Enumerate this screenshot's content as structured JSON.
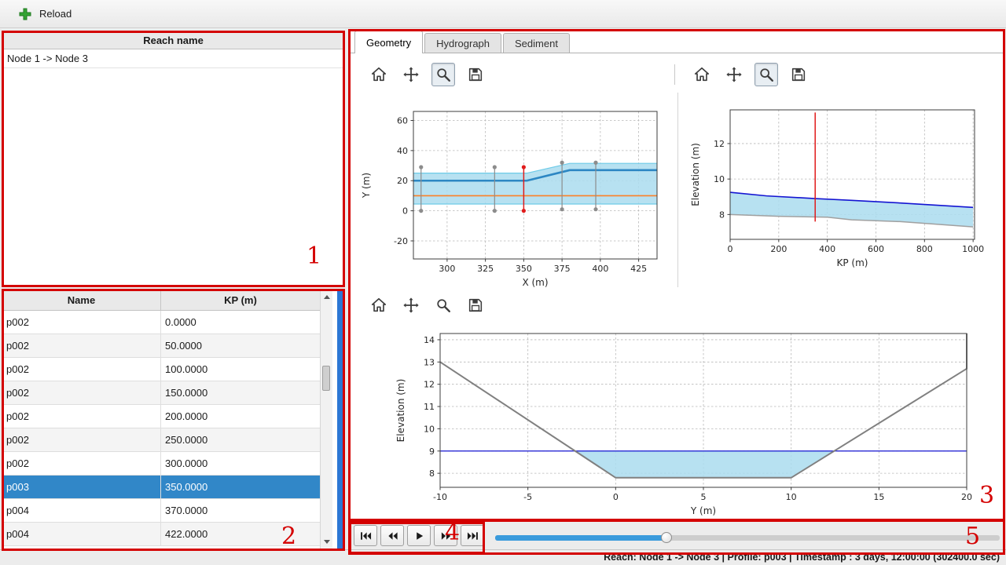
{
  "toolbar": {
    "reload_label": "Reload"
  },
  "reach_panel": {
    "header": "Reach name",
    "items": [
      "Node 1 -> Node 3"
    ]
  },
  "profile_table": {
    "columns": [
      "Name",
      "KP (m)"
    ],
    "selected_index": 7,
    "rows": [
      {
        "name": "p002",
        "kp": "0.0000"
      },
      {
        "name": "p002",
        "kp": "50.0000"
      },
      {
        "name": "p002",
        "kp": "100.0000"
      },
      {
        "name": "p002",
        "kp": "150.0000"
      },
      {
        "name": "p002",
        "kp": "200.0000"
      },
      {
        "name": "p002",
        "kp": "250.0000"
      },
      {
        "name": "p002",
        "kp": "300.0000"
      },
      {
        "name": "p003",
        "kp": "350.0000"
      },
      {
        "name": "p004",
        "kp": "370.0000"
      },
      {
        "name": "p004",
        "kp": "422.0000"
      }
    ]
  },
  "tabs": [
    {
      "label": "Geometry",
      "active": true
    },
    {
      "label": "Hydrograph",
      "active": false
    },
    {
      "label": "Sediment",
      "active": false
    }
  ],
  "plot_toolbars": {
    "icons": [
      "home",
      "pan",
      "zoom",
      "save"
    ],
    "plan_active_tool": "zoom",
    "long_profile_active_tool": "zoom",
    "cross_section_active_tool": null
  },
  "controls": {
    "buttons": [
      "skip-first",
      "rewind",
      "play",
      "fast-forward",
      "skip-last"
    ],
    "slider_percent": 34
  },
  "status_bar": {
    "text": "Reach: Node 1 -> Node 3 | Profile: p003 | Timestamp : 3 days, 12:00:00 (302400.0 sec)"
  },
  "annotations": {
    "labels": [
      "1",
      "2",
      "3",
      "4",
      "5"
    ]
  },
  "colors": {
    "selection": "#3187c8",
    "slider_fill": "#3a9bdc",
    "splitter": "#2c77d4",
    "annotation": "#d40000"
  },
  "chart_data": [
    {
      "id": "plan-view",
      "type": "line",
      "xlabel": "X (m)",
      "ylabel": "Y (m)",
      "xlim": [
        278,
        437
      ],
      "ylim": [
        -32,
        66
      ],
      "xticks": [
        300,
        325,
        350,
        375,
        400,
        425
      ],
      "yticks": [
        -20,
        0,
        20,
        40,
        60
      ],
      "grid": true,
      "series": [
        {
          "name": "channel-band",
          "type": "fill",
          "color": "#aadcee",
          "opacity": 0.85,
          "points": [
            [
              278,
              25
            ],
            [
              352,
              25
            ],
            [
              380,
              31.5
            ],
            [
              437,
              31.5
            ],
            [
              437,
              4.5
            ],
            [
              278,
              4.5
            ]
          ]
        },
        {
          "name": "band-upper-edge",
          "type": "line",
          "color": "#6ecbe8",
          "width": 1.2,
          "points": [
            [
              278,
              25
            ],
            [
              352,
              25
            ],
            [
              380,
              31.5
            ],
            [
              437,
              31.5
            ]
          ]
        },
        {
          "name": "band-lower-edge",
          "type": "line",
          "color": "#6ecbe8",
          "width": 1.2,
          "points": [
            [
              278,
              4.5
            ],
            [
              437,
              4.5
            ]
          ]
        },
        {
          "name": "centerline",
          "type": "line",
          "color": "#2d87c3",
          "width": 2.6,
          "points": [
            [
              278,
              20
            ],
            [
              352,
              20
            ],
            [
              380,
              27
            ],
            [
              437,
              27
            ]
          ]
        },
        {
          "name": "reference-line",
          "type": "line",
          "color": "#fd8026",
          "width": 1.6,
          "points": [
            [
              278,
              10
            ],
            [
              437,
              10
            ]
          ]
        },
        {
          "name": "profile-marker",
          "type": "vline",
          "color": "#8c8c8c",
          "width": 1.2,
          "dots": true,
          "x": 283,
          "y1": 0,
          "y2": 29
        },
        {
          "name": "profile-marker",
          "type": "vline",
          "color": "#8c8c8c",
          "width": 1.2,
          "dots": true,
          "x": 331,
          "y1": 0,
          "y2": 29
        },
        {
          "name": "profile-marker",
          "type": "vline",
          "color": "#8c8c8c",
          "width": 1.2,
          "dots": true,
          "x": 375,
          "y1": 1,
          "y2": 32
        },
        {
          "name": "profile-marker",
          "type": "vline",
          "color": "#8c8c8c",
          "width": 1.2,
          "dots": true,
          "x": 397,
          "y1": 1,
          "y2": 32
        },
        {
          "name": "selected-profile-marker",
          "type": "vline",
          "color": "#e01b1b",
          "width": 1.5,
          "dots": true,
          "x": 350,
          "y1": 0,
          "y2": 29
        }
      ]
    },
    {
      "id": "long-profile",
      "type": "area",
      "xlabel": "KP (m)",
      "ylabel": "Elevation (m)",
      "xlim": [
        0,
        1006
      ],
      "ylim": [
        6.6,
        13.9
      ],
      "xticks": [
        0,
        200,
        400,
        600,
        800,
        1000
      ],
      "yticks": [
        8,
        10,
        12
      ],
      "grid": true,
      "series": [
        {
          "name": "water-fill",
          "type": "fill",
          "color": "#aadcee",
          "opacity": 0.85,
          "points": [
            [
              0,
              9.25
            ],
            [
              150,
              9.05
            ],
            [
              350,
              8.9
            ],
            [
              500,
              8.8
            ],
            [
              700,
              8.65
            ],
            [
              1000,
              8.4
            ],
            [
              1000,
              7.3
            ],
            [
              850,
              7.45
            ],
            [
              700,
              7.6
            ],
            [
              500,
              7.7
            ],
            [
              400,
              7.85
            ],
            [
              200,
              7.9
            ],
            [
              0,
              8.0
            ]
          ]
        },
        {
          "name": "water-surface",
          "type": "line",
          "color": "#1414d2",
          "width": 1.6,
          "points": [
            [
              0,
              9.25
            ],
            [
              150,
              9.05
            ],
            [
              350,
              8.9
            ],
            [
              500,
              8.8
            ],
            [
              700,
              8.65
            ],
            [
              1000,
              8.4
            ]
          ]
        },
        {
          "name": "bed-level",
          "type": "line",
          "color": "#a0a0a0",
          "width": 1.5,
          "points": [
            [
              0,
              8.0
            ],
            [
              200,
              7.9
            ],
            [
              400,
              7.85
            ],
            [
              500,
              7.7
            ],
            [
              700,
              7.6
            ],
            [
              850,
              7.45
            ],
            [
              1000,
              7.3
            ]
          ]
        },
        {
          "name": "selected-profile-marker",
          "type": "vline",
          "color": "#e01b1b",
          "width": 1.5,
          "dots": false,
          "x": 350,
          "y1": 7.6,
          "y2": 13.75
        }
      ]
    },
    {
      "id": "cross-section",
      "type": "area",
      "xlabel": "Y (m)",
      "ylabel": "Elevation (m)",
      "xlim": [
        -10,
        20
      ],
      "ylim": [
        7.37,
        14.28
      ],
      "xticks": [
        -10,
        -5,
        0,
        5,
        10,
        15,
        20
      ],
      "yticks": [
        8,
        9,
        10,
        11,
        12,
        13,
        14
      ],
      "grid": true,
      "series": [
        {
          "name": "water-fill",
          "type": "fill",
          "color": "#aadcee",
          "opacity": 0.85,
          "points": [
            [
              -2.31,
              9
            ],
            [
              12.45,
              9
            ],
            [
              10,
              7.8
            ],
            [
              0,
              7.8
            ]
          ]
        },
        {
          "name": "water-surface",
          "type": "line",
          "color": "#1414d2",
          "width": 1.3,
          "points": [
            [
              -10,
              9
            ],
            [
              20,
              9
            ]
          ]
        },
        {
          "name": "bed-profile",
          "type": "line",
          "color": "#808080",
          "width": 2,
          "points": [
            [
              -10,
              13.0
            ],
            [
              0,
              7.8
            ],
            [
              10,
              7.8
            ],
            [
              20,
              12.7
            ],
            [
              20,
              14.28
            ]
          ]
        }
      ]
    }
  ]
}
